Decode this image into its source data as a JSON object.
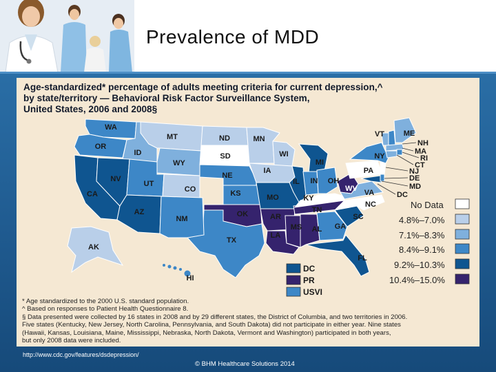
{
  "slide": {
    "title": "Prevalence of MDD",
    "source_url": "http://www.cdc.gov/features/dsdepression/",
    "copyright": "© BHM Healthcare Solutions 2014"
  },
  "map": {
    "title_lines": [
      "Age-standardized* percentage of adults meeting criteria for current depression,^",
      "by state/territory — Behavioral Risk Factor Surveillance System,",
      "United States, 2006 and 2008§"
    ],
    "legend": [
      {
        "label": "No Data",
        "color": "#ffffff"
      },
      {
        "label": "4.8%–7.0%",
        "color": "#b9cfe9"
      },
      {
        "label": "7.1%–8.3%",
        "color": "#7fb0dd"
      },
      {
        "label": "8.4%–9.1%",
        "color": "#3d87c7"
      },
      {
        "label": "9.2%–10.3%",
        "color": "#0f5590"
      },
      {
        "label": "10.4%–15.0%",
        "color": "#35236d"
      }
    ],
    "territories": [
      {
        "label": "DC",
        "color": "#0f5590"
      },
      {
        "label": "PR",
        "color": "#35236d"
      },
      {
        "label": "USVI",
        "color": "#3d87c7"
      }
    ],
    "states": {
      "WA": "WA",
      "OR": "OR",
      "ID": "ID",
      "MT": "MT",
      "WY": "WY",
      "ND": "ND",
      "SD": "SD",
      "MN": "MN",
      "WI": "WI",
      "MI": "MI",
      "NE": "NE",
      "IA": "IA",
      "CA": "CA",
      "NV": "NV",
      "UT": "UT",
      "CO": "CO",
      "KS": "KS",
      "MO": "MO",
      "IL": "IL",
      "IN": "IN",
      "OH": "OH",
      "AZ": "AZ",
      "NM": "NM",
      "OK": "OK",
      "AR": "AR",
      "TX": "TX",
      "LA": "LA",
      "MS": "MS",
      "AL": "AL",
      "GA": "GA",
      "FL": "FL",
      "SC": "SC",
      "NC": "NC",
      "TN": "TN",
      "KY": "KY",
      "WV": "WV",
      "VA": "VA",
      "PA": "PA",
      "NY": "NY",
      "VT": "VT",
      "ME": "ME",
      "NH": "NH",
      "MA": "MA",
      "RI": "RI",
      "CT": "CT",
      "NJ": "NJ",
      "DE": "DE",
      "MD": "MD",
      "DC": "DC",
      "AK": "AK",
      "HI": "HI"
    },
    "footnotes": [
      "* Age standardized to the 2000 U.S. standard population.",
      "^ Based on responses to Patient Health Questionnaire 8.",
      "§ Data presented were collected by 16 states in 2008 and by 29 different states, the District of Columbia, and two territories in 2006.",
      "Five states (Kentucky, New Jersey, North Carolina, Pennsylvania, and South Dakota) did not participate in either year. Nine states",
      "(Hawaii, Kansas, Louisiana, Maine, Mississippi, Nebraska, North Dakota, Vermont and Washington) participated in both years,",
      "but only 2008 data were included."
    ]
  }
}
